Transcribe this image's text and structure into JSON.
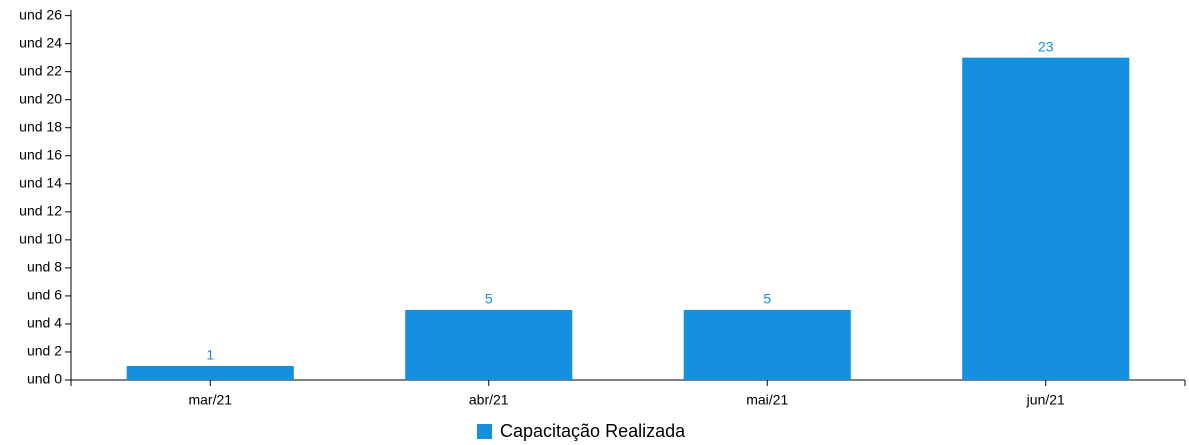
{
  "chart_data": {
    "type": "bar",
    "categories": [
      "mar/21",
      "abr/21",
      "mai/21",
      "jun/21"
    ],
    "series": [
      {
        "name": "Capacitação Realizada",
        "color": "#1490df",
        "values": [
          1,
          5,
          5,
          23
        ]
      }
    ],
    "ylim": [
      0,
      26.4
    ],
    "yticks": [
      {
        "value": 0,
        "label": "und 0"
      },
      {
        "value": 2,
        "label": "und 2"
      },
      {
        "value": 4,
        "label": "und 4"
      },
      {
        "value": 6,
        "label": "und 6"
      },
      {
        "value": 8,
        "label": "und 8"
      },
      {
        "value": 10,
        "label": "und 10"
      },
      {
        "value": 12,
        "label": "und 12"
      },
      {
        "value": 14,
        "label": "und 14"
      },
      {
        "value": 16,
        "label": "und 16"
      },
      {
        "value": 18,
        "label": "und 18"
      },
      {
        "value": 20,
        "label": "und 20"
      },
      {
        "value": 22,
        "label": "und 22"
      },
      {
        "value": 24,
        "label": "und 24"
      },
      {
        "value": 26,
        "label": "und 26"
      }
    ],
    "grid": false,
    "legend": "bottom"
  }
}
